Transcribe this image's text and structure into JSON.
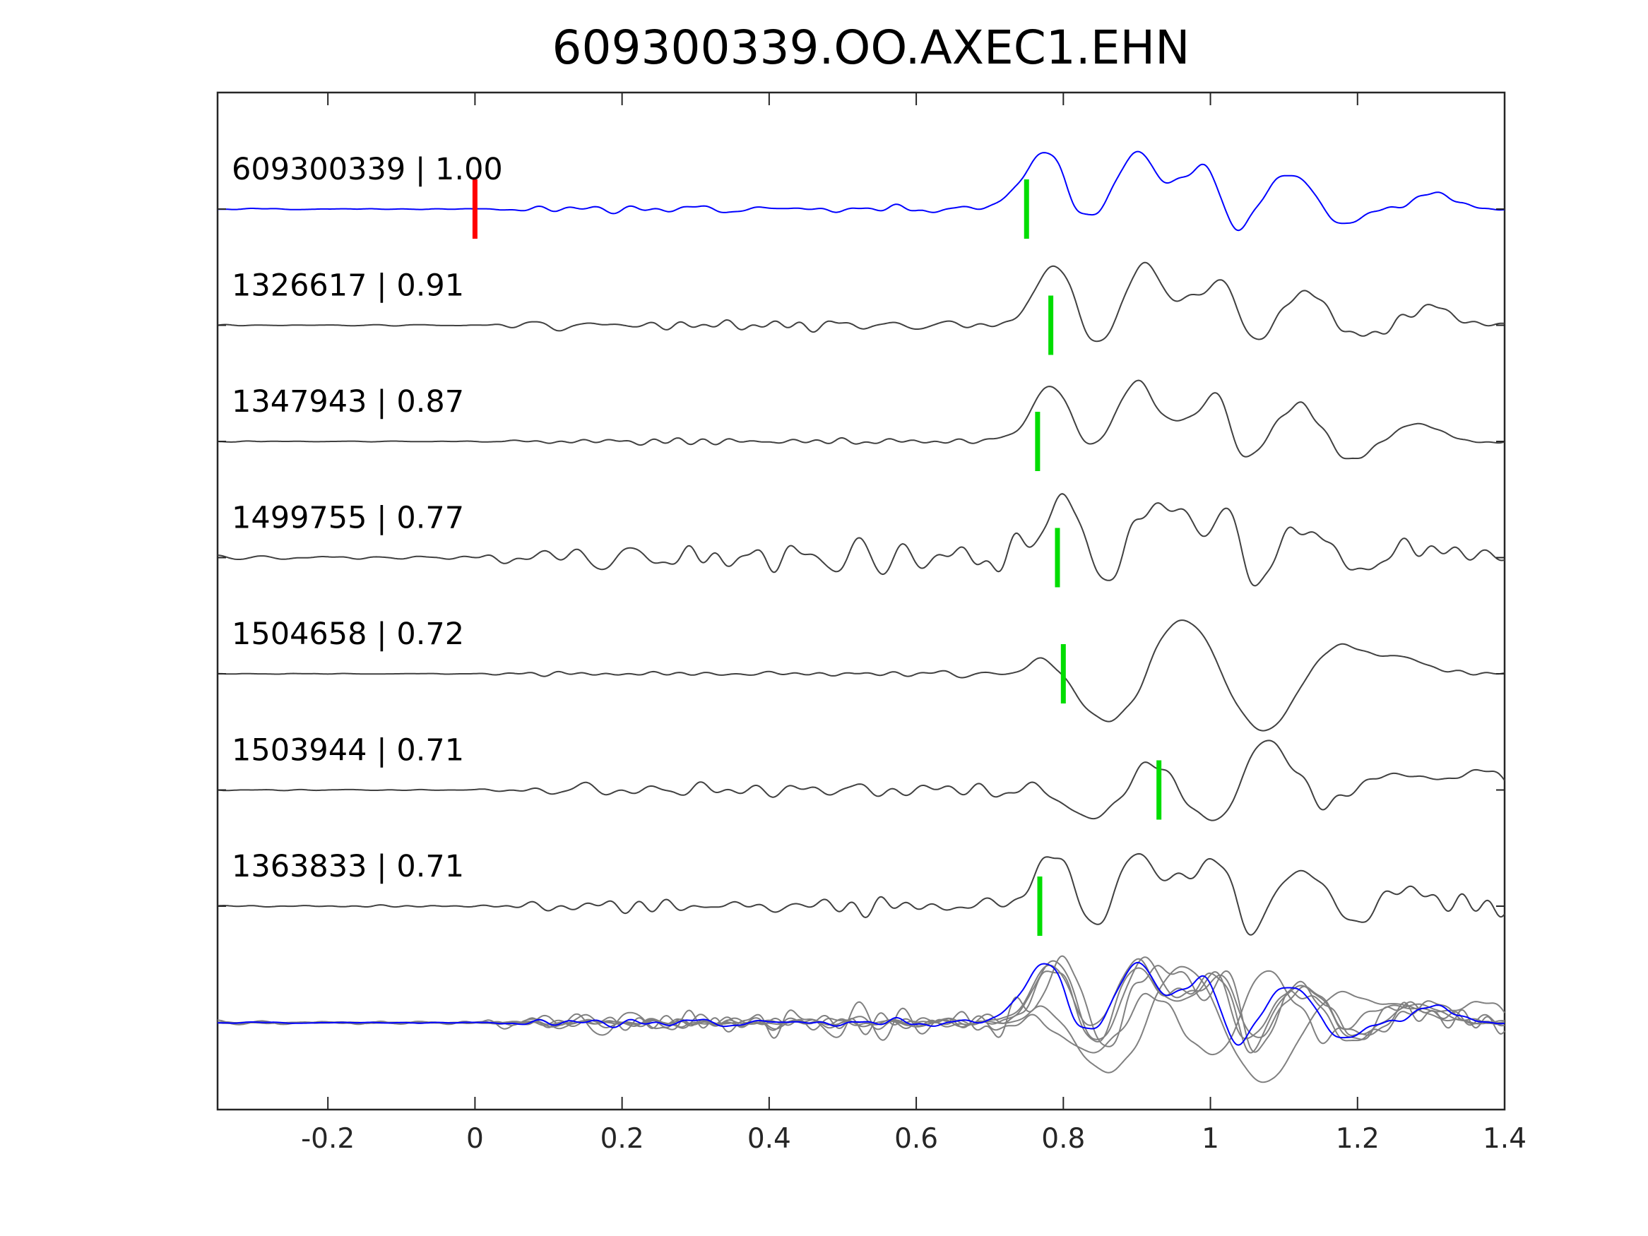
{
  "chart_data": {
    "type": "line",
    "title": "609300339.OO.AXEC1.EHN",
    "xlabel": "",
    "ylabel": "",
    "xlim": [
      -0.35,
      1.4
    ],
    "x_ticks": [
      -0.2,
      0,
      0.2,
      0.4,
      0.6,
      0.8,
      1,
      1.2,
      1.4
    ],
    "x_tick_labels": [
      "-0.2",
      "0",
      "0.2",
      "0.4",
      "0.6",
      "0.8",
      "1",
      "1.2",
      "1.4"
    ],
    "grid": false,
    "colors": {
      "master": "#0000ff",
      "neighbor": "#404040",
      "overlay_neighbor": "#808080",
      "origin_marker": "#ff0000",
      "pick_marker": "#00dd00",
      "axes": "#262626"
    },
    "origin_marker_time": 0,
    "series": [
      {
        "id": "609300339",
        "label": "609300339 | 1.00",
        "correlation": 1.0,
        "pick_time": 0.75,
        "role": "master",
        "arrivals": [
          [
            0.78,
            1.0,
            0.045
          ],
          [
            0.82,
            -0.5,
            0.03
          ],
          [
            0.9,
            0.92,
            0.035
          ],
          [
            0.96,
            0.3,
            0.025
          ],
          [
            1.0,
            0.8,
            0.03
          ],
          [
            1.03,
            -0.55,
            0.03
          ],
          [
            1.11,
            0.6,
            0.04
          ],
          [
            1.18,
            -0.25,
            0.04
          ],
          [
            1.3,
            0.25,
            0.04
          ]
        ],
        "noise_amp": 0.1,
        "seed": 11
      },
      {
        "id": "1326617",
        "label": "1326617 | 0.91",
        "correlation": 0.91,
        "pick_time": 0.783,
        "role": "neighbor",
        "arrivals": [
          [
            0.79,
            0.95,
            0.04
          ],
          [
            0.84,
            -0.45,
            0.03
          ],
          [
            0.91,
            0.95,
            0.035
          ],
          [
            0.97,
            0.35,
            0.025
          ],
          [
            1.02,
            0.9,
            0.03
          ],
          [
            1.05,
            -0.5,
            0.03
          ],
          [
            1.13,
            0.55,
            0.04
          ],
          [
            1.2,
            -0.2,
            0.04
          ],
          [
            1.3,
            0.3,
            0.04
          ]
        ],
        "noise_amp": 0.12,
        "seed": 23
      },
      {
        "id": "1347943",
        "label": "1347943 | 0.87",
        "correlation": 0.87,
        "pick_time": 0.765,
        "role": "neighbor",
        "arrivals": [
          [
            0.79,
            0.9,
            0.045
          ],
          [
            0.83,
            -0.4,
            0.03
          ],
          [
            0.9,
            0.95,
            0.035
          ],
          [
            0.96,
            0.25,
            0.025
          ],
          [
            1.01,
            0.9,
            0.03
          ],
          [
            1.04,
            -0.5,
            0.03
          ],
          [
            1.12,
            0.6,
            0.04
          ],
          [
            1.19,
            -0.3,
            0.04
          ],
          [
            1.28,
            0.3,
            0.04
          ]
        ],
        "noise_amp": 0.09,
        "seed": 37
      },
      {
        "id": "1499755",
        "label": "1499755 | 0.77",
        "correlation": 0.77,
        "pick_time": 0.792,
        "role": "neighbor",
        "arrivals": [
          [
            0.8,
            0.9,
            0.04
          ],
          [
            0.86,
            -0.5,
            0.03
          ],
          [
            0.92,
            0.95,
            0.035
          ],
          [
            0.97,
            0.35,
            0.025
          ],
          [
            1.02,
            0.85,
            0.03
          ],
          [
            1.06,
            -0.55,
            0.03
          ],
          [
            1.13,
            0.55,
            0.04
          ],
          [
            1.19,
            -0.2,
            0.04
          ],
          [
            1.3,
            0.2,
            0.04
          ]
        ],
        "noise_amp": 0.3,
        "seed": 51
      },
      {
        "id": "1504658",
        "label": "1504658 | 0.72",
        "correlation": 0.72,
        "pick_time": 0.8,
        "role": "neighbor",
        "arrivals": [
          [
            0.78,
            0.3,
            0.03
          ],
          [
            0.87,
            -0.85,
            0.06
          ],
          [
            0.96,
            1.0,
            0.06
          ],
          [
            1.07,
            -0.95,
            0.06
          ],
          [
            1.17,
            0.5,
            0.05
          ],
          [
            1.26,
            0.25,
            0.05
          ]
        ],
        "noise_amp": 0.07,
        "seed": 67
      },
      {
        "id": "1503944",
        "label": "1503944 | 0.71",
        "correlation": 0.71,
        "pick_time": 0.93,
        "role": "neighbor",
        "arrivals": [
          [
            0.84,
            -0.5,
            0.04
          ],
          [
            0.92,
            0.45,
            0.04
          ],
          [
            1.01,
            -0.6,
            0.05
          ],
          [
            1.08,
            1.0,
            0.05
          ],
          [
            1.14,
            -0.4,
            0.05
          ],
          [
            1.24,
            0.25,
            0.06
          ],
          [
            1.36,
            0.3,
            0.05
          ]
        ],
        "noise_amp": 0.16,
        "seed": 79
      },
      {
        "id": "1363833",
        "label": "1363833 | 0.71",
        "correlation": 0.71,
        "pick_time": 0.768,
        "role": "neighbor",
        "arrivals": [
          [
            0.79,
            0.85,
            0.04
          ],
          [
            0.84,
            -0.55,
            0.03
          ],
          [
            0.9,
            0.9,
            0.035
          ],
          [
            0.96,
            0.3,
            0.025
          ],
          [
            1.01,
            0.95,
            0.03
          ],
          [
            1.05,
            -0.6,
            0.03
          ],
          [
            1.12,
            0.6,
            0.04
          ],
          [
            1.2,
            -0.2,
            0.04
          ],
          [
            1.27,
            0.3,
            0.04
          ]
        ],
        "noise_amp": 0.22,
        "seed": 97
      }
    ],
    "overlay": {
      "description_visible": false,
      "includes": "all traces superimposed at bottom"
    }
  }
}
